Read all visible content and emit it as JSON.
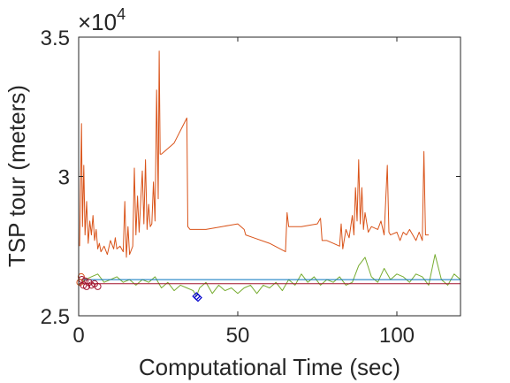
{
  "chart_data": {
    "type": "line",
    "xlabel": "Computational Time (sec)",
    "ylabel": "TSP tour (meters)",
    "xlim": [
      0,
      120
    ],
    "ylim": [
      25000,
      35000
    ],
    "xticks": [
      0,
      50,
      100
    ],
    "xtick_labels": [
      "0",
      "50",
      "100"
    ],
    "yticks": [
      25000,
      30000,
      35000
    ],
    "ytick_labels": [
      "2.5",
      "3",
      "3.5"
    ],
    "y_multiplier": "×10",
    "y_multiplier_exp": "4",
    "grid": false,
    "box": true,
    "series": [
      {
        "color": "#D95319",
        "points": [
          [
            0.3,
            27500
          ],
          [
            0.6,
            29800
          ],
          [
            0.9,
            31900
          ],
          [
            1.2,
            28200
          ],
          [
            1.6,
            30400
          ],
          [
            2.0,
            27900
          ],
          [
            2.5,
            29100
          ],
          [
            3.0,
            27600
          ],
          [
            3.5,
            28400
          ],
          [
            4.0,
            27900
          ],
          [
            4.5,
            28600
          ],
          [
            5.0,
            27700
          ],
          [
            5.5,
            28100
          ],
          [
            6.0,
            27400
          ],
          [
            6.5,
            27600
          ],
          [
            7,
            27300
          ],
          [
            8,
            27500
          ],
          [
            9,
            27200
          ],
          [
            10,
            27700
          ],
          [
            11,
            27400
          ],
          [
            11.5,
            27800
          ],
          [
            12,
            27400
          ],
          [
            13,
            27500
          ],
          [
            14,
            27300
          ],
          [
            14.5,
            29100
          ],
          [
            15,
            27100
          ],
          [
            15.5,
            28200
          ],
          [
            16,
            27200
          ],
          [
            17,
            27500
          ],
          [
            17.5,
            30300
          ],
          [
            18,
            27900
          ],
          [
            18.5,
            29300
          ],
          [
            19,
            28000
          ],
          [
            20,
            30200
          ],
          [
            20.5,
            28300
          ],
          [
            21,
            30600
          ],
          [
            21.5,
            28100
          ],
          [
            22,
            29000
          ],
          [
            22.5,
            28200
          ],
          [
            23,
            28300
          ],
          [
            23.5,
            29800
          ],
          [
            24,
            28400
          ],
          [
            24.5,
            33100
          ],
          [
            25,
            29200
          ],
          [
            25.3,
            34500
          ],
          [
            25.6,
            30800
          ],
          [
            26,
            30800
          ],
          [
            30,
            31200
          ],
          [
            34,
            32100
          ],
          [
            34.3,
            28200
          ],
          [
            35,
            28100
          ],
          [
            40,
            28100
          ],
          [
            45,
            28200
          ],
          [
            50,
            28300
          ],
          [
            52,
            28100
          ],
          [
            52.5,
            27900
          ],
          [
            55,
            27800
          ],
          [
            60,
            27600
          ],
          [
            65,
            27300
          ],
          [
            65.5,
            28700
          ],
          [
            66,
            28200
          ],
          [
            70,
            28200
          ],
          [
            75,
            28300
          ],
          [
            76,
            28500
          ],
          [
            76.5,
            27700
          ],
          [
            78,
            27700
          ],
          [
            80,
            27600
          ],
          [
            82,
            27500
          ],
          [
            82.5,
            28300
          ],
          [
            83,
            27400
          ],
          [
            84,
            28100
          ],
          [
            85,
            27800
          ],
          [
            86,
            28600
          ],
          [
            86.5,
            27900
          ],
          [
            87,
            29600
          ],
          [
            87.5,
            28400
          ],
          [
            88,
            30600
          ],
          [
            88.5,
            28300
          ],
          [
            89,
            29600
          ],
          [
            89.5,
            28100
          ],
          [
            90,
            28700
          ],
          [
            91,
            28000
          ],
          [
            92,
            28200
          ],
          [
            94,
            28100
          ],
          [
            95,
            28400
          ],
          [
            96,
            27900
          ],
          [
            97,
            30400
          ],
          [
            97.5,
            28000
          ],
          [
            98,
            27900
          ],
          [
            100,
            28000
          ],
          [
            101,
            27700
          ],
          [
            102,
            28000
          ],
          [
            103,
            27900
          ],
          [
            104,
            28100
          ],
          [
            105,
            27900
          ],
          [
            106,
            27700
          ],
          [
            107,
            28000
          ],
          [
            108,
            27700
          ],
          [
            108.5,
            30900
          ],
          [
            109,
            27900
          ],
          [
            110,
            27900
          ]
        ]
      },
      {
        "color": "#77AC30",
        "points": [
          [
            0,
            26100
          ],
          [
            2,
            26300
          ],
          [
            4,
            26400
          ],
          [
            6,
            26500
          ],
          [
            8,
            26200
          ],
          [
            10,
            26300
          ],
          [
            12,
            26400
          ],
          [
            14,
            26200
          ],
          [
            16,
            26300
          ],
          [
            18,
            26100
          ],
          [
            20,
            26300
          ],
          [
            22,
            26200
          ],
          [
            24,
            26400
          ],
          [
            26,
            26000
          ],
          [
            28,
            26200
          ],
          [
            30,
            25900
          ],
          [
            32,
            26100
          ],
          [
            34,
            26000
          ],
          [
            36,
            25900
          ],
          [
            37,
            25700
          ],
          [
            38,
            26000
          ],
          [
            40,
            26200
          ],
          [
            42,
            25800
          ],
          [
            44,
            26100
          ],
          [
            46,
            25900
          ],
          [
            48,
            26000
          ],
          [
            50,
            25800
          ],
          [
            52,
            26000
          ],
          [
            54,
            26100
          ],
          [
            56,
            25800
          ],
          [
            58,
            26100
          ],
          [
            60,
            26000
          ],
          [
            62,
            26200
          ],
          [
            64,
            25900
          ],
          [
            66,
            26300
          ],
          [
            68,
            26100
          ],
          [
            70,
            26500
          ],
          [
            72,
            26200
          ],
          [
            74,
            26400
          ],
          [
            76,
            26100
          ],
          [
            78,
            26300
          ],
          [
            80,
            26200
          ],
          [
            82,
            26400
          ],
          [
            84,
            26100
          ],
          [
            86,
            26200
          ],
          [
            88,
            26800
          ],
          [
            90,
            27100
          ],
          [
            92,
            26400
          ],
          [
            94,
            26200
          ],
          [
            96,
            26700
          ],
          [
            98,
            26300
          ],
          [
            100,
            26500
          ],
          [
            102,
            26400
          ],
          [
            104,
            26200
          ],
          [
            106,
            26500
          ],
          [
            108,
            26400
          ],
          [
            110,
            26100
          ],
          [
            112,
            27200
          ],
          [
            114,
            26300
          ],
          [
            116,
            26100
          ],
          [
            118,
            26500
          ],
          [
            120,
            26300
          ]
        ]
      },
      {
        "color": "#0072BD",
        "points": [
          [
            0,
            26300
          ],
          [
            120,
            26300
          ]
        ]
      },
      {
        "color": "#A2142F",
        "points": [
          [
            0,
            26150
          ],
          [
            120,
            26150
          ]
        ]
      }
    ],
    "markers": [
      {
        "color": "#D95319",
        "shape": "circle",
        "points": [
          [
            0.4,
            26200
          ],
          [
            0.8,
            26400
          ]
        ]
      },
      {
        "color": "#A2142F",
        "shape": "circle",
        "points": [
          [
            1.0,
            26300
          ],
          [
            1.5,
            26100
          ],
          [
            2.0,
            26250
          ],
          [
            2.5,
            26050
          ],
          [
            3.2,
            26200
          ],
          [
            4.0,
            26100
          ],
          [
            5.0,
            26150
          ],
          [
            6.0,
            26050
          ]
        ]
      },
      {
        "color": "#0000CD",
        "shape": "diamond",
        "points": [
          [
            37,
            25700
          ],
          [
            37.5,
            25650
          ]
        ]
      }
    ]
  }
}
